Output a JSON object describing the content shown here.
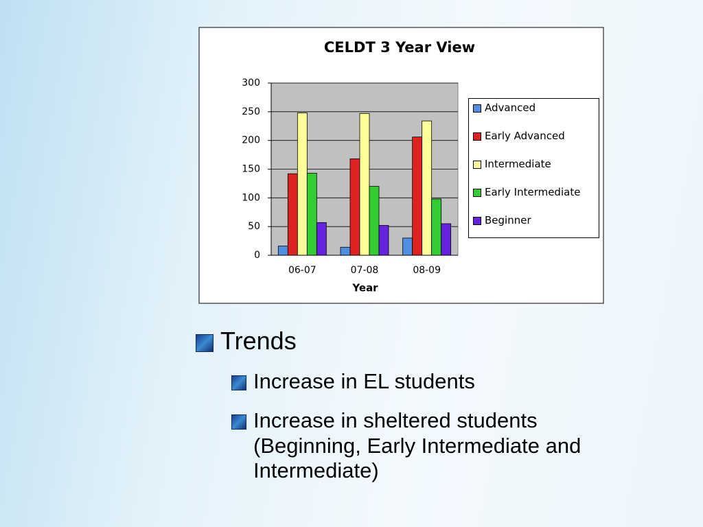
{
  "chart_data": {
    "type": "bar",
    "title": "CELDT 3 Year View",
    "x_label": "Year",
    "categories": [
      "06-07",
      "07-08",
      "08-09"
    ],
    "series": [
      {
        "name": "Advanced",
        "color": "#4f8fdf",
        "values": [
          16,
          14,
          30
        ]
      },
      {
        "name": "Early Advanced",
        "color": "#dd2222",
        "values": [
          142,
          168,
          206
        ]
      },
      {
        "name": "Intermediate",
        "color": "#ffff99",
        "values": [
          248,
          247,
          234
        ]
      },
      {
        "name": "Early Intermediate",
        "color": "#33cc33",
        "values": [
          143,
          120,
          98
        ]
      },
      {
        "name": "Beginner",
        "color": "#6622dd",
        "values": [
          57,
          52,
          55
        ]
      }
    ],
    "ylim": [
      0,
      300
    ],
    "yticks": [
      0,
      50,
      100,
      150,
      200,
      250,
      300
    ],
    "grid": true,
    "legend": "right"
  },
  "bullets": {
    "heading": "Trends",
    "items": [
      "Increase in EL students",
      "Increase in sheltered students (Beginning, Early Intermediate and Intermediate)"
    ]
  }
}
